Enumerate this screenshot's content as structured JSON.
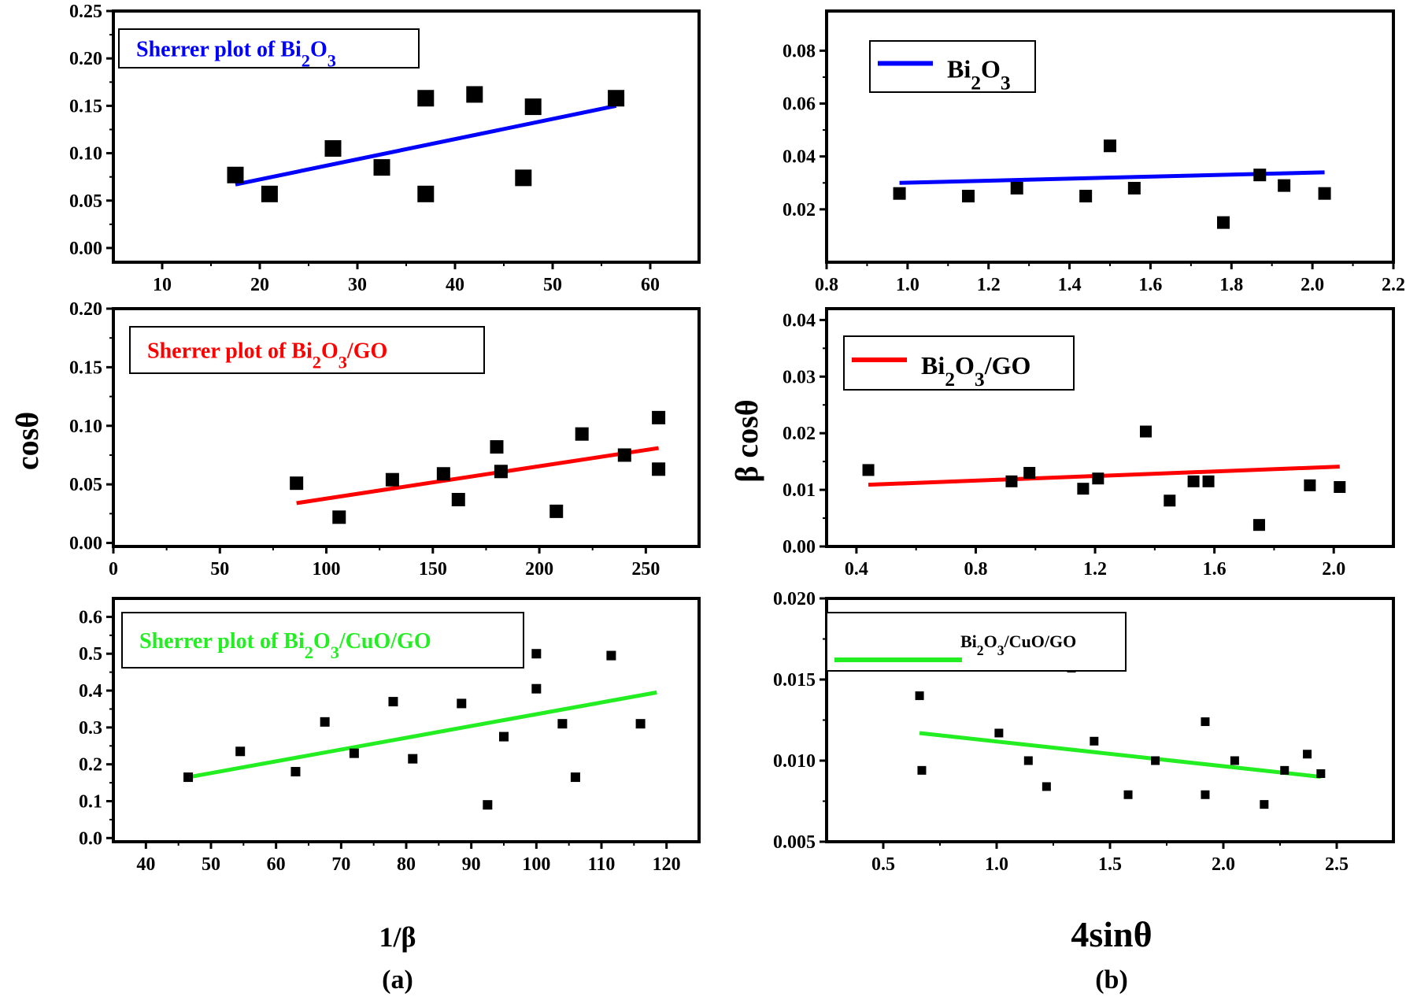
{
  "figure": {
    "panel_labels": {
      "a": "(a)",
      "b": "(b)"
    },
    "shared_labels": {
      "left_ylabel": "cosθ",
      "left_xlabel": "1/β",
      "right_ylabel": "β cosθ",
      "right_xlabel": "4sinθ"
    }
  },
  "chart_data": [
    {
      "id": "a1",
      "type": "scatter",
      "title": "Sherrer plot of Bi2O3",
      "legend": {
        "text": "Sherrer plot of Bi₂O₃",
        "color": "#0000ff",
        "placement": "top-left"
      },
      "xlabel": "",
      "ylabel": "",
      "xlim": [
        5,
        65
      ],
      "ylim": [
        -0.015,
        0.25
      ],
      "xticks": [
        10,
        20,
        30,
        40,
        50,
        60
      ],
      "yticks": [
        0.0,
        0.05,
        0.1,
        0.15,
        0.2,
        0.25
      ],
      "xtick_labels": [
        "10",
        "20",
        "30",
        "40",
        "50",
        "60"
      ],
      "ytick_labels": [
        "0.00",
        "0.05",
        "0.10",
        "0.15",
        "0.20",
        "0.25"
      ],
      "points": [
        [
          17.5,
          0.077
        ],
        [
          21,
          0.057
        ],
        [
          27.5,
          0.105
        ],
        [
          32.5,
          0.085
        ],
        [
          37,
          0.158
        ],
        [
          37,
          0.057
        ],
        [
          42,
          0.162
        ],
        [
          47,
          0.074
        ],
        [
          48,
          0.149
        ],
        [
          56.5,
          0.158
        ]
      ],
      "fit": {
        "x": [
          17.5,
          56.5
        ],
        "y": [
          0.067,
          0.15
        ],
        "color": "#0000ff"
      }
    },
    {
      "id": "b1",
      "type": "scatter",
      "title": "Bi2O3",
      "legend": {
        "text": "Bi₂O₃",
        "color": "#0000ff",
        "placement": "top-left"
      },
      "xlabel": "",
      "ylabel": "",
      "xlim": [
        0.8,
        2.2
      ],
      "ylim": [
        0.0,
        0.095
      ],
      "xticks": [
        0.8,
        1.0,
        1.2,
        1.4,
        1.6,
        1.8,
        2.0,
        2.2
      ],
      "yticks": [
        0.02,
        0.04,
        0.06,
        0.08
      ],
      "xtick_labels": [
        "0.8",
        "1.0",
        "1.2",
        "1.4",
        "1.6",
        "1.8",
        "2.0",
        "2.2"
      ],
      "ytick_labels": [
        "0.02",
        "0.04",
        "0.06",
        "0.08"
      ],
      "points": [
        [
          0.98,
          0.026
        ],
        [
          1.15,
          0.025
        ],
        [
          1.27,
          0.028
        ],
        [
          1.44,
          0.025
        ],
        [
          1.5,
          0.044
        ],
        [
          1.56,
          0.028
        ],
        [
          1.78,
          0.015
        ],
        [
          1.87,
          0.033
        ],
        [
          1.93,
          0.029
        ],
        [
          2.03,
          0.026
        ]
      ],
      "fit": {
        "x": [
          0.98,
          2.03
        ],
        "y": [
          0.03,
          0.034
        ],
        "color": "#0000ff"
      }
    },
    {
      "id": "a2",
      "type": "scatter",
      "title": "Sherrer plot of Bi2O3/GO",
      "legend": {
        "text": "Sherrer plot of Bi₂O₃/GO",
        "color": "#ff0000",
        "placement": "top-left"
      },
      "xlabel": "",
      "ylabel": "cosθ",
      "xlim": [
        0,
        275
      ],
      "ylim": [
        -0.003,
        0.2
      ],
      "xticks": [
        0,
        50,
        100,
        150,
        200,
        250
      ],
      "yticks": [
        0.0,
        0.05,
        0.1,
        0.15,
        0.2
      ],
      "xtick_labels": [
        "0",
        "50",
        "100",
        "150",
        "200",
        "250"
      ],
      "ytick_labels": [
        "0.00",
        "0.05",
        "0.10",
        "0.15",
        "0.20"
      ],
      "points": [
        [
          86,
          0.051
        ],
        [
          106,
          0.022
        ],
        [
          131,
          0.054
        ],
        [
          155,
          0.059
        ],
        [
          162,
          0.037
        ],
        [
          180,
          0.082
        ],
        [
          182,
          0.061
        ],
        [
          208,
          0.027
        ],
        [
          220,
          0.093
        ],
        [
          240,
          0.075
        ],
        [
          256,
          0.107
        ],
        [
          256,
          0.063
        ]
      ],
      "fit": {
        "x": [
          86,
          256
        ],
        "y": [
          0.034,
          0.081
        ],
        "color": "#ff0000"
      }
    },
    {
      "id": "b2",
      "type": "scatter",
      "title": "Bi2O3/GO",
      "legend": {
        "text": "Bi₂O₃/GO",
        "color": "#ff0000",
        "placement": "top-left"
      },
      "xlabel": "",
      "ylabel": "β cosθ",
      "xlim": [
        0.3,
        2.2
      ],
      "ylim": [
        0.0,
        0.042
      ],
      "xticks": [
        0.4,
        0.8,
        1.2,
        1.6,
        2.0
      ],
      "yticks": [
        0.0,
        0.01,
        0.02,
        0.03,
        0.04
      ],
      "xtick_labels": [
        "0.4",
        "0.8",
        "1.2",
        "1.6",
        "2.0"
      ],
      "ytick_labels": [
        "0.00",
        "0.01",
        "0.02",
        "0.03",
        "0.04"
      ],
      "points": [
        [
          0.44,
          0.0135
        ],
        [
          0.92,
          0.0115
        ],
        [
          0.98,
          0.013
        ],
        [
          1.16,
          0.0102
        ],
        [
          1.21,
          0.012
        ],
        [
          1.37,
          0.0203
        ],
        [
          1.45,
          0.0081
        ],
        [
          1.53,
          0.0115
        ],
        [
          1.58,
          0.0115
        ],
        [
          1.75,
          0.0038
        ],
        [
          1.92,
          0.0108
        ],
        [
          2.02,
          0.0105
        ]
      ],
      "fit": {
        "x": [
          0.44,
          2.02
        ],
        "y": [
          0.0109,
          0.0141
        ],
        "color": "#ff0000"
      }
    },
    {
      "id": "a3",
      "type": "scatter",
      "title": "Sherrer plot of Bi2O3/CuO/GO",
      "legend": {
        "text": "Sherrer plot of Bi₂O₃/CuO/GO",
        "color": "#22ee22",
        "placement": "top-left"
      },
      "xlabel": "1/β",
      "ylabel": "",
      "xlim": [
        35,
        125
      ],
      "ylim": [
        -0.01,
        0.65
      ],
      "xticks": [
        40,
        50,
        60,
        70,
        80,
        90,
        100,
        110,
        120
      ],
      "yticks": [
        0.0,
        0.1,
        0.2,
        0.3,
        0.4,
        0.5,
        0.6
      ],
      "xtick_labels": [
        "40",
        "50",
        "60",
        "70",
        "80",
        "90",
        "100",
        "110",
        "120"
      ],
      "ytick_labels": [
        "0.0",
        "0.1",
        "0.2",
        "0.3",
        "0.4",
        "0.5",
        "0.6"
      ],
      "points": [
        [
          46.5,
          0.165
        ],
        [
          54.5,
          0.235
        ],
        [
          63,
          0.18
        ],
        [
          67.5,
          0.315
        ],
        [
          72,
          0.23
        ],
        [
          78,
          0.37
        ],
        [
          81,
          0.215
        ],
        [
          88.5,
          0.365
        ],
        [
          92.5,
          0.09
        ],
        [
          95,
          0.275
        ],
        [
          100,
          0.5
        ],
        [
          100,
          0.405
        ],
        [
          104,
          0.31
        ],
        [
          106,
          0.165
        ],
        [
          111.5,
          0.495
        ],
        [
          116,
          0.31
        ]
      ],
      "fit": {
        "x": [
          46.5,
          118.5
        ],
        "y": [
          0.165,
          0.395
        ],
        "color": "#22ee22"
      }
    },
    {
      "id": "b3",
      "type": "scatter",
      "title": "Bi2O3/CuO/GO",
      "legend": {
        "text": "Bi₂O₃/CuO/GO",
        "color": "#22ee22",
        "placement": "top-left"
      },
      "xlabel": "4sinθ",
      "ylabel": "",
      "xlim": [
        0.25,
        2.75
      ],
      "ylim": [
        0.005,
        0.02
      ],
      "xticks": [
        0.5,
        1.0,
        1.5,
        2.0,
        2.5
      ],
      "yticks": [
        0.005,
        0.01,
        0.015,
        0.02
      ],
      "xtick_labels": [
        "0.5",
        "1.0",
        "1.5",
        "2.0",
        "2.5"
      ],
      "ytick_labels": [
        "0.005",
        "0.010",
        "0.015",
        "0.020"
      ],
      "points": [
        [
          0.66,
          0.014
        ],
        [
          0.67,
          0.0094
        ],
        [
          1.01,
          0.0117
        ],
        [
          1.14,
          0.01
        ],
        [
          1.22,
          0.0084
        ],
        [
          1.33,
          0.0157
        ],
        [
          1.43,
          0.0112
        ],
        [
          1.58,
          0.0079
        ],
        [
          1.7,
          0.01
        ],
        [
          1.92,
          0.0124
        ],
        [
          1.92,
          0.0079
        ],
        [
          2.05,
          0.01
        ],
        [
          2.18,
          0.0073
        ],
        [
          2.27,
          0.0094
        ],
        [
          2.37,
          0.0104
        ],
        [
          2.43,
          0.0092
        ]
      ],
      "fit": {
        "x": [
          0.66,
          2.43
        ],
        "y": [
          0.0117,
          0.009
        ],
        "color": "#22ee22"
      }
    }
  ]
}
